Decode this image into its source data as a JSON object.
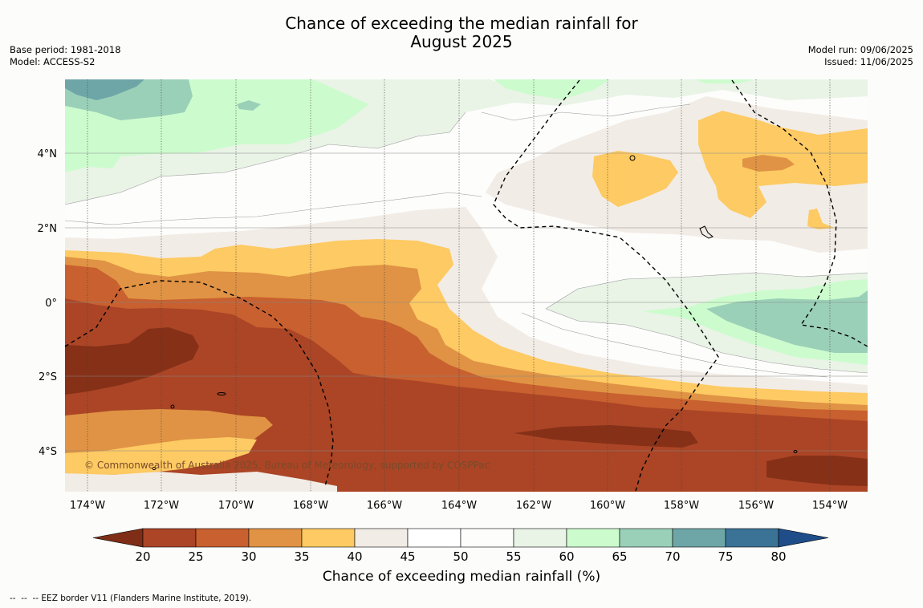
{
  "title": {
    "line1": "Chance of exceeding the median rainfall for",
    "line2": "August 2025"
  },
  "meta_left": {
    "base_period": "Base period: 1981-2018",
    "model": "Model: ACCESS-S2"
  },
  "meta_right": {
    "model_run": "Model run: 09/06/2025",
    "issued": "Issued: 11/06/2025"
  },
  "map": {
    "lon_labels": [
      "174°W",
      "172°W",
      "170°W",
      "168°W",
      "166°W",
      "164°W",
      "162°W",
      "160°W",
      "158°W",
      "156°W",
      "154°W"
    ],
    "lat_labels": [
      "4°N",
      "2°N",
      "0°",
      "2°S",
      "4°S"
    ],
    "copyright": "© Commonwealth of Australia 2025, Bureau of Meteorology, supported by COSPPac"
  },
  "colorbar": {
    "title": "Chance of exceeding median rainfall (%)",
    "ticks": [
      "20",
      "25",
      "30",
      "35",
      "40",
      "45",
      "50",
      "55",
      "60",
      "65",
      "70",
      "75",
      "80"
    ],
    "colors": [
      "#7f2d16",
      "#ab4526",
      "#c8602f",
      "#e09344",
      "#fdca63",
      "#f2ece6",
      "#ffffff",
      "#fdfdfb",
      "#e9f3e6",
      "#ccfccd",
      "#9bd0b8",
      "#6ea6a8",
      "#3b7397",
      "#1e4d8a"
    ]
  },
  "footnote": "--  --  -- EEZ border V11 (Flanders Marine Institute, 2019)."
}
